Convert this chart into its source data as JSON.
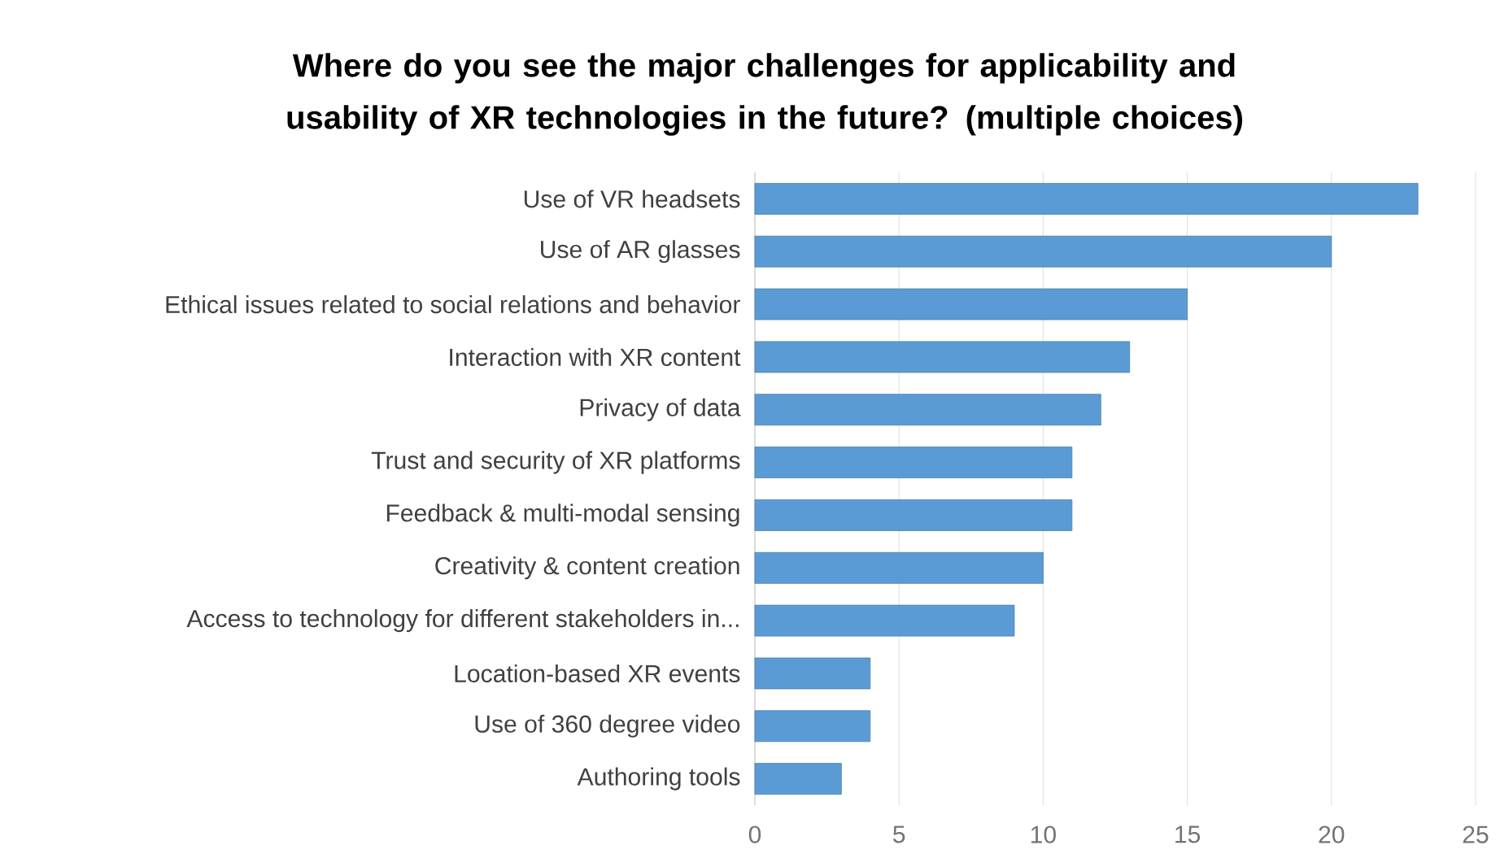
{
  "chart_data": {
    "type": "bar",
    "orientation": "horizontal",
    "title": "Where do you see the major challenges for applicability and usability of XR technologies in the future? (multiple choices)",
    "categories": [
      "Use of VR headsets",
      "Use of AR glasses",
      "Ethical issues related to social relations and behavior",
      "Interaction with XR content",
      "Privacy of data",
      "Trust and security of XR platforms",
      "Feedback & multi-modal sensing",
      "Creativity & content creation",
      "Access to technology for different stakeholders in...",
      "Location-based XR events",
      "Use of 360 degree video",
      "Authoring tools"
    ],
    "values": [
      23,
      20,
      15,
      13,
      12,
      11,
      11,
      10,
      9,
      4,
      4,
      3
    ],
    "color": "#5b9bd5",
    "xlim": [
      0,
      25
    ],
    "xticks": [
      0,
      5,
      10,
      15,
      20,
      25
    ],
    "grid": "x"
  }
}
